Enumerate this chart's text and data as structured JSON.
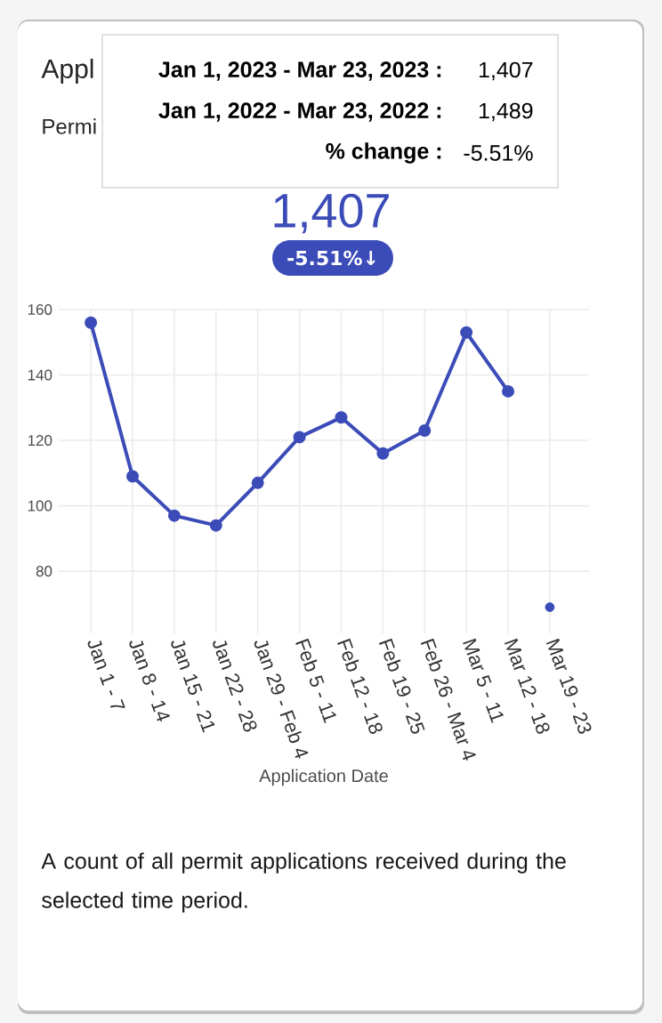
{
  "chart_data": {
    "type": "line",
    "title": "Appl",
    "subtitle": "Permi",
    "xlabel": "Application Date",
    "categories": [
      "Jan 1 - 7",
      "Jan 8 - 14",
      "Jan 15 - 21",
      "Jan 22 - 28",
      "Jan 29 - Feb 4",
      "Feb 5 - 11",
      "Feb 12 - 18",
      "Feb 19 - 25",
      "Feb 26 - Mar 4",
      "Mar 5 - 11",
      "Mar 12 - 18",
      "Mar 19 - 23"
    ],
    "series": [
      {
        "color": "#3b4cb8",
        "values": [
          156,
          109,
          97,
          94,
          107,
          121,
          127,
          116,
          123,
          153,
          135,
          null
        ]
      },
      {
        "type": "scatter",
        "color": "#3b4cb8",
        "values": [
          null,
          null,
          null,
          null,
          null,
          null,
          null,
          null,
          null,
          null,
          null,
          69
        ]
      }
    ],
    "ylim": [
      61,
      160
    ],
    "yticks": [
      80,
      100,
      120,
      140,
      160
    ],
    "grid": true,
    "marker": "circle",
    "line_style": "solid",
    "annotations": [
      "Jan 1, 2023 - Mar 23, 2023 :",
      "1,407",
      "Jan 1, 2022 - Mar 23, 2022 :",
      "1,489",
      "% change :",
      "-5.51%",
      "1,407",
      "-5.51%↓",
      "A count of all permit applications received during the selected time period."
    ]
  }
}
